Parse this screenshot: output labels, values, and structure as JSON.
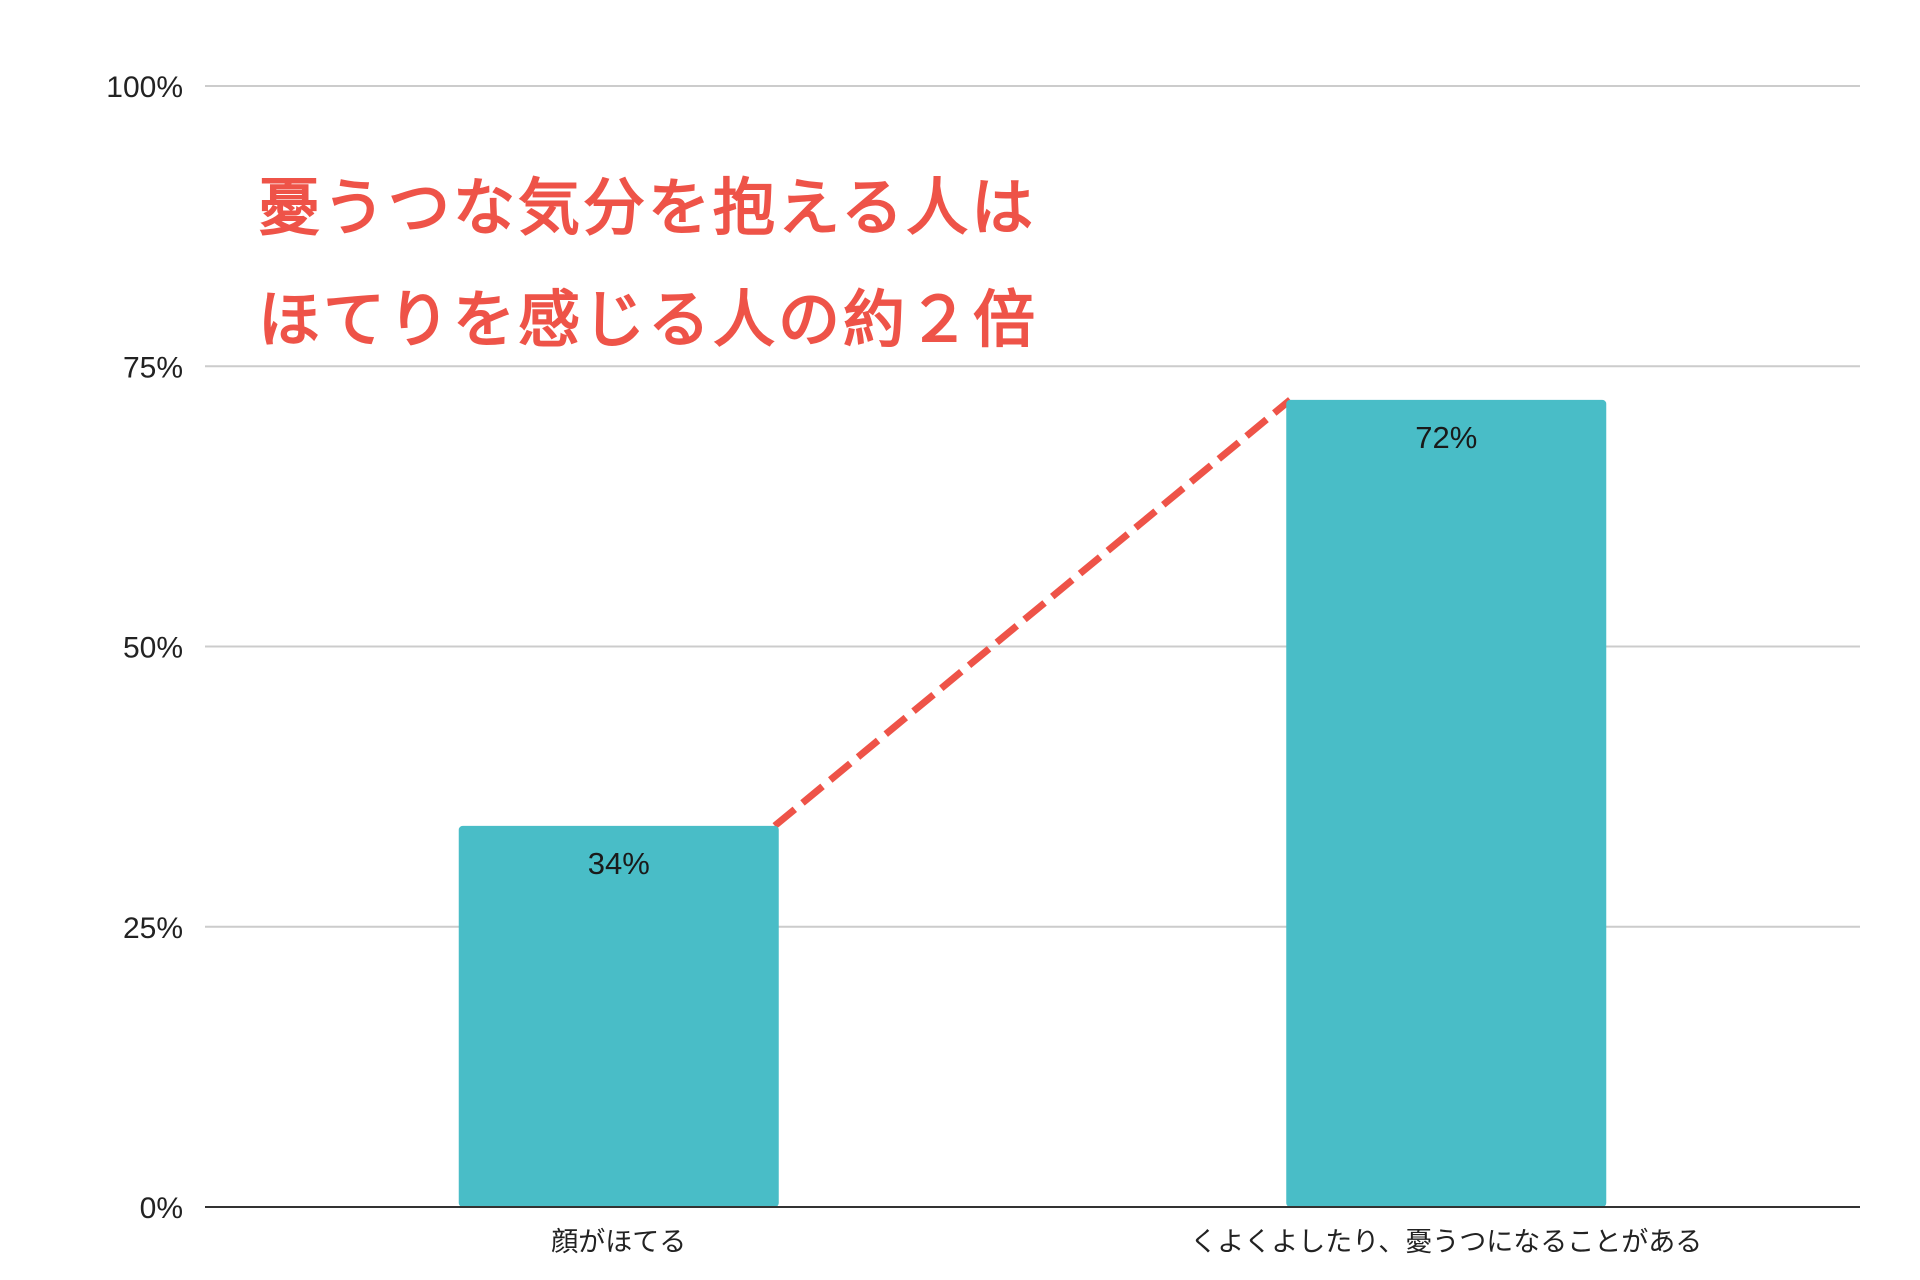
{
  "chart_data": {
    "type": "bar",
    "categories": [
      "顔がほてる",
      "くよくよしたり、憂うつになることがある"
    ],
    "values": [
      34,
      72
    ],
    "data_labels": [
      "34%",
      "72%"
    ],
    "ylim": [
      0,
      100
    ],
    "yticks": [
      0,
      25,
      50,
      75,
      100
    ],
    "ytick_labels": [
      "0%",
      "25%",
      "50%",
      "75%",
      "100%"
    ],
    "grid": true,
    "legend": "none",
    "annotation": {
      "lines": [
        "憂うつな気分を抱える人は",
        "ほてりを感じる人の約２倍"
      ],
      "connector": "dashed-line-between-bar-tops"
    },
    "colors": {
      "bar": "#49bdc7",
      "annotation": "#ee5348",
      "connector": "#ee5348",
      "grid": "#cccccc",
      "axis": "#333333"
    }
  }
}
